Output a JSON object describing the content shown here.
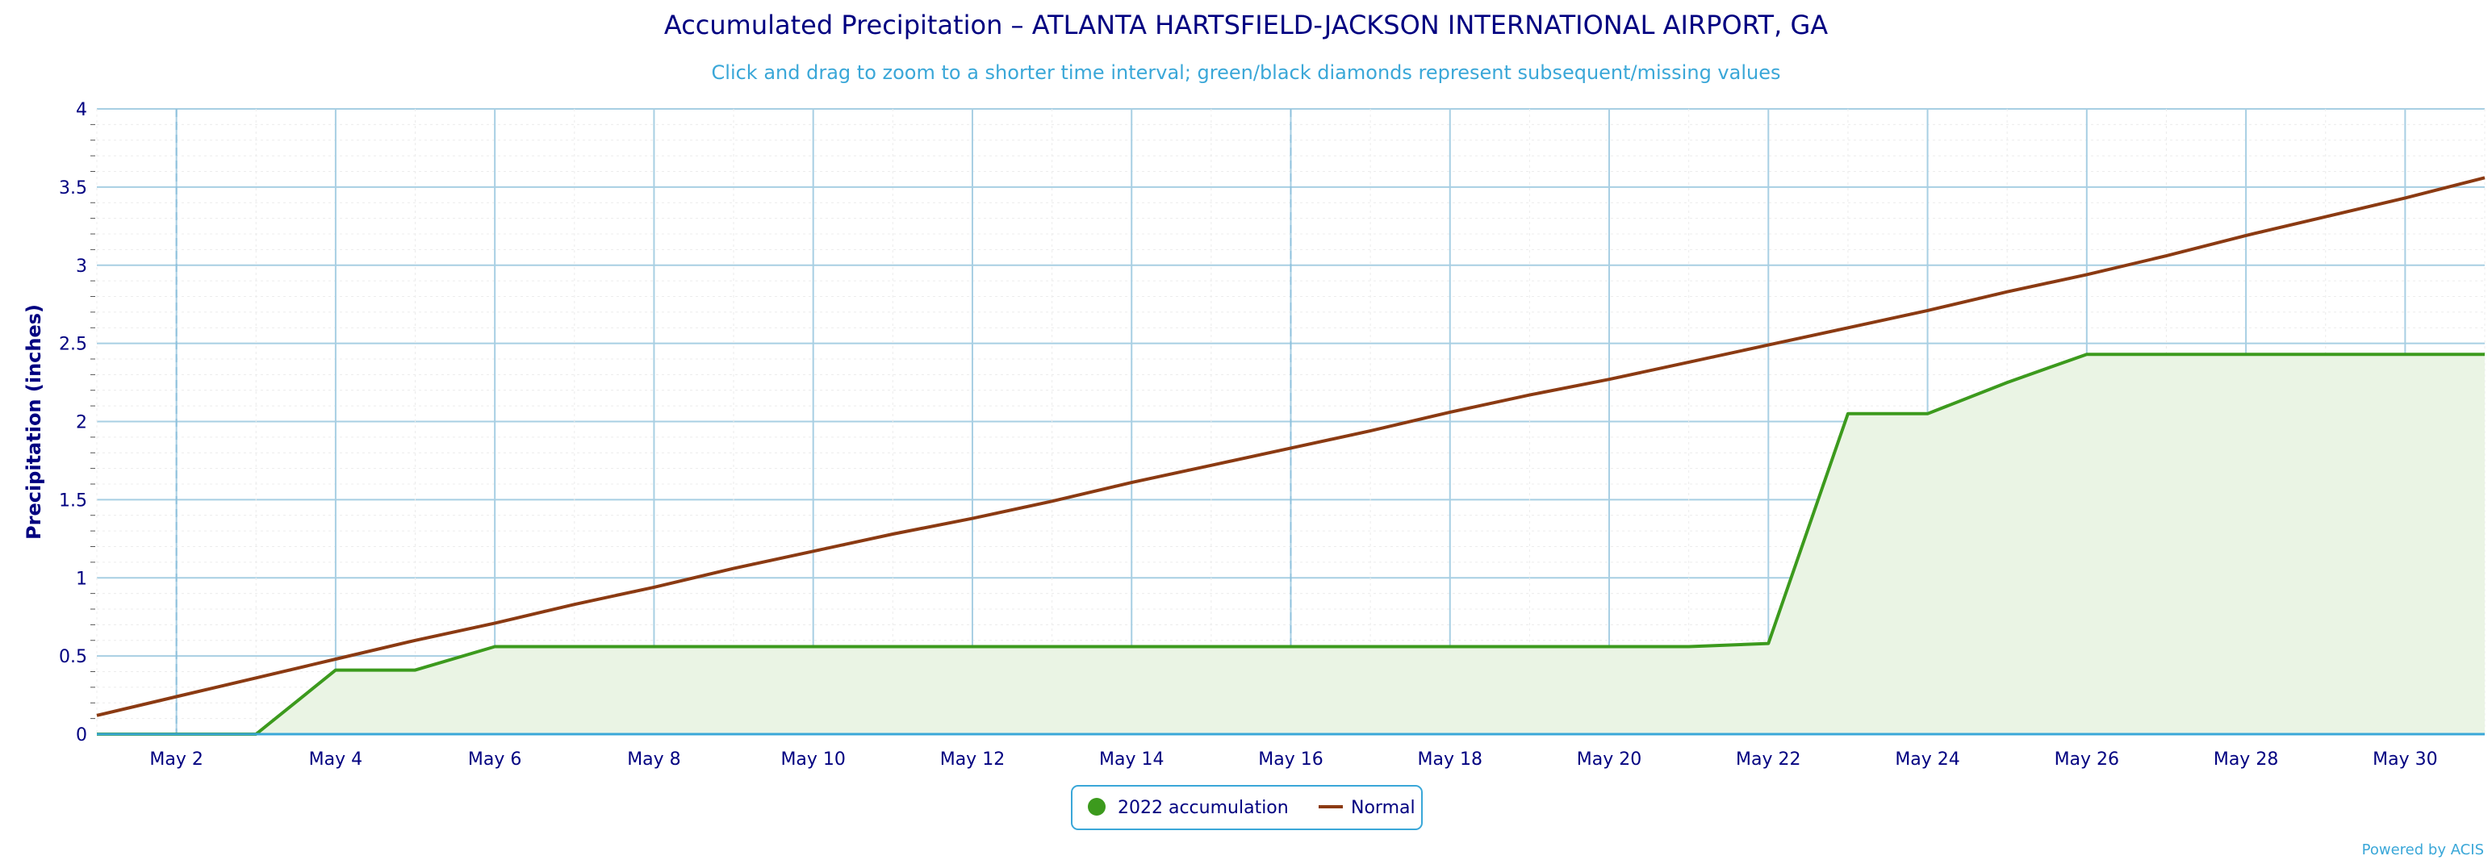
{
  "chart_data": {
    "type": "line",
    "title": "Accumulated Precipitation – ATLANTA HARTSFIELD-JACKSON INTERNATIONAL AIRPORT, GA",
    "subtitle": "Click and drag to zoom to a shorter time interval; green/black diamonds represent subsequent/missing values",
    "ylabel": "Precipitation (inches)",
    "ylim": [
      0,
      4
    ],
    "yticks": [
      "0",
      "0.5",
      "1",
      "1.5",
      "2",
      "2.5",
      "3",
      "3.5",
      "4"
    ],
    "x": [
      "May 1",
      "May 2",
      "May 3",
      "May 4",
      "May 5",
      "May 6",
      "May 7",
      "May 8",
      "May 9",
      "May 10",
      "May 11",
      "May 12",
      "May 13",
      "May 14",
      "May 15",
      "May 16",
      "May 17",
      "May 18",
      "May 19",
      "May 20",
      "May 21",
      "May 22",
      "May 23",
      "May 24",
      "May 25",
      "May 26",
      "May 27",
      "May 28",
      "May 29",
      "May 30",
      "May 31"
    ],
    "xtick_labels": [
      "May 2",
      "May 4",
      "May 6",
      "May 8",
      "May 10",
      "May 12",
      "May 14",
      "May 16",
      "May 18",
      "May 20",
      "May 22",
      "May 24",
      "May 26",
      "May 28",
      "May 30"
    ],
    "grid": true,
    "legend_position": "bottom-center",
    "series": [
      {
        "name": "2022 accumulation",
        "color": "#3c9a1d",
        "fill": "#eaf4e4",
        "values": [
          0,
          0,
          0,
          0.41,
          0.41,
          0.56,
          0.56,
          0.56,
          0.56,
          0.56,
          0.56,
          0.56,
          0.56,
          0.56,
          0.56,
          0.56,
          0.56,
          0.56,
          0.56,
          0.56,
          0.56,
          0.58,
          2.05,
          2.05,
          2.25,
          2.43,
          2.43,
          2.43,
          2.43,
          2.43,
          2.43
        ]
      },
      {
        "name": "Normal",
        "color": "#8b3a12",
        "values": [
          0.12,
          0.24,
          0.36,
          0.48,
          0.6,
          0.71,
          0.83,
          0.94,
          1.06,
          1.17,
          1.28,
          1.38,
          1.49,
          1.61,
          1.72,
          1.83,
          1.94,
          2.06,
          2.17,
          2.27,
          2.38,
          2.49,
          2.6,
          2.71,
          2.83,
          2.94,
          3.06,
          3.19,
          3.31,
          3.43,
          3.56
        ]
      }
    ]
  },
  "credit": "Powered by ACIS"
}
